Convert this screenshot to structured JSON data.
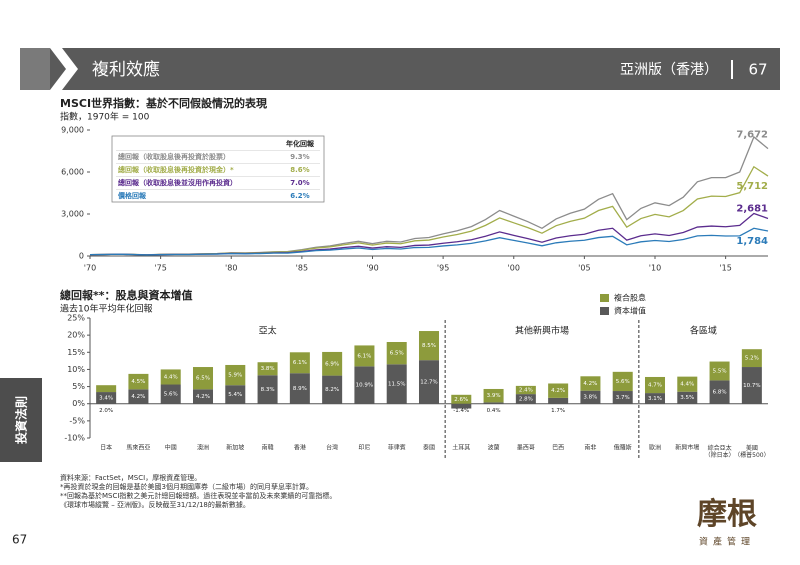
{
  "header": {
    "title": "複利效應",
    "edition": "亞洲版（香港）",
    "page": "67"
  },
  "side_tab": "投資法則",
  "page_number": "67",
  "footnotes": [
    "資料來源：FactSet，MSCI，摩根資產管理。",
    "*再投資於現金的回報是基於美國3個月期國庫券（二級市場）的同月孳息率計算。",
    "**回報為基於MSCI指數之美元計總回報總額。過往表現並非當前及未來業績的可靠指標。",
    "《環球市場縱覽 – 亞洲版》。反映截至31/12/18的最新數據。"
  ],
  "logo": {
    "name": "摩根",
    "tagline": "資產管理"
  },
  "chart_data": [
    {
      "type": "line",
      "title": "MSCI世界指數：基於不同假設情況的表現",
      "y_label": "指數，1970年 = 100",
      "legend_header": "年化回報",
      "x": [
        1970,
        1971,
        1972,
        1973,
        1974,
        1975,
        1976,
        1977,
        1978,
        1979,
        1980,
        1981,
        1982,
        1983,
        1984,
        1985,
        1986,
        1987,
        1988,
        1989,
        1990,
        1991,
        1992,
        1993,
        1994,
        1995,
        1996,
        1997,
        1998,
        1999,
        2000,
        2001,
        2002,
        2003,
        2004,
        2005,
        2006,
        2007,
        2008,
        2009,
        2010,
        2011,
        2012,
        2013,
        2014,
        2015,
        2016,
        2017,
        2018
      ],
      "xlim": [
        1970,
        2018
      ],
      "xticks": [
        {
          "value": 1970,
          "label": "'70"
        },
        {
          "value": 1975,
          "label": "'75"
        },
        {
          "value": 1980,
          "label": "'80"
        },
        {
          "value": 1985,
          "label": "'85"
        },
        {
          "value": 1990,
          "label": "'90"
        },
        {
          "value": 1995,
          "label": "'95"
        },
        {
          "value": 2000,
          "label": "'00"
        },
        {
          "value": 2005,
          "label": "'05"
        },
        {
          "value": 2010,
          "label": "'10"
        },
        {
          "value": 2015,
          "label": "'15"
        }
      ],
      "ylim": [
        0,
        9000
      ],
      "yticks": [
        0,
        {
          "value": 3000,
          "label": "3,000"
        },
        {
          "value": 6000,
          "label": "6,000"
        },
        {
          "value": 9000,
          "label": "9,000"
        }
      ],
      "grid": false,
      "series": [
        {
          "name": "總回報（收取股息後再投資於股票）",
          "annual_return": "9.3%",
          "color": "#8c8c8c",
          "values": [
            100,
            110,
            130,
            115,
            85,
            115,
            130,
            135,
            160,
            180,
            230,
            220,
            250,
            300,
            320,
            450,
            620,
            720,
            900,
            1050,
            880,
            1050,
            1000,
            1250,
            1320,
            1580,
            1800,
            2100,
            2600,
            3250,
            2850,
            2450,
            1980,
            2650,
            3050,
            3350,
            4050,
            4450,
            2600,
            3400,
            3800,
            3600,
            4200,
            5300,
            5600,
            5600,
            6000,
            8500,
            7672
          ],
          "value_labels": [
            null,
            null,
            null,
            null,
            null,
            null,
            null,
            null,
            null,
            null,
            null,
            null,
            null,
            null,
            null,
            null,
            null,
            null,
            null,
            null,
            null,
            null,
            null,
            null,
            null,
            null,
            null,
            null,
            null,
            null,
            null,
            null,
            null,
            null,
            null,
            null,
            null,
            null,
            null,
            null,
            null,
            null,
            null,
            null,
            null,
            null,
            null,
            null,
            "7,672"
          ]
        },
        {
          "name": "總回報（收取股息後再投資於現金）*",
          "annual_return": "8.6%",
          "color": "#a2ad4a",
          "values": [
            100,
            109,
            128,
            113,
            83,
            112,
            125,
            129,
            152,
            170,
            216,
            205,
            232,
            277,
            294,
            410,
            562,
            649,
            806,
            935,
            778,
            923,
            874,
            1085,
            1139,
            1356,
            1535,
            1781,
            2189,
            2720,
            2371,
            2026,
            1628,
            2165,
            2477,
            2703,
            3248,
            3547,
            2059,
            2676,
            2972,
            2797,
            3247,
            4070,
            4278,
            4250,
            4524,
            6375,
            5712
          ],
          "value_labels": [
            null,
            null,
            null,
            null,
            null,
            null,
            null,
            null,
            null,
            null,
            null,
            null,
            null,
            null,
            null,
            null,
            null,
            null,
            null,
            null,
            null,
            null,
            null,
            null,
            null,
            null,
            null,
            null,
            null,
            null,
            null,
            null,
            null,
            null,
            null,
            null,
            null,
            null,
            null,
            null,
            null,
            null,
            null,
            null,
            null,
            null,
            null,
            null,
            "5,712"
          ]
        },
        {
          "name": "總回報（收取股息後並沒用作再投資）",
          "annual_return": "7.0%",
          "color": "#5b2c8e",
          "values": [
            100,
            108,
            125,
            108,
            78,
            103,
            114,
            116,
            134,
            148,
            185,
            173,
            193,
            226,
            236,
            324,
            437,
            497,
            608,
            693,
            568,
            664,
            618,
            756,
            780,
            913,
            1019,
            1163,
            1409,
            1723,
            1476,
            1242,
            982,
            1288,
            1449,
            1554,
            1839,
            1980,
            1131,
            1448,
            1581,
            1465,
            1676,
            2067,
            2139,
            2089,
            2190,
            3035,
            2681
          ],
          "value_labels": [
            null,
            null,
            null,
            null,
            null,
            null,
            null,
            null,
            null,
            null,
            null,
            null,
            null,
            null,
            null,
            null,
            null,
            null,
            null,
            null,
            null,
            null,
            null,
            null,
            null,
            null,
            null,
            null,
            null,
            null,
            null,
            null,
            null,
            null,
            null,
            null,
            null,
            null,
            null,
            null,
            null,
            null,
            null,
            null,
            null,
            null,
            null,
            null,
            "2,681"
          ]
        },
        {
          "name": "價格回報",
          "annual_return": "6.2%",
          "color": "#2b7bb9",
          "values": [
            100,
            107,
            123,
            105,
            75,
            99,
            109,
            109,
            126,
            137,
            170,
            158,
            174,
            203,
            210,
            285,
            382,
            418,
            506,
            571,
            466,
            541,
            498,
            604,
            618,
            719,
            796,
            899,
            1079,
            1307,
            1114,
            929,
            729,
            943,
            1052,
            1122,
            1316,
            1406,
            796,
            1013,
            1109,
            1037,
            1176,
            1436,
            1473,
            1428,
            1440,
            1981,
            1784
          ],
          "value_labels": [
            null,
            null,
            null,
            null,
            null,
            null,
            null,
            null,
            null,
            null,
            null,
            null,
            null,
            null,
            null,
            null,
            null,
            null,
            null,
            null,
            null,
            null,
            null,
            null,
            null,
            null,
            null,
            null,
            null,
            null,
            null,
            null,
            null,
            null,
            null,
            null,
            null,
            null,
            null,
            null,
            null,
            null,
            null,
            null,
            null,
            null,
            null,
            null,
            "1,784"
          ]
        }
      ]
    },
    {
      "type": "bar",
      "title": "總回報**：股息與資本增值",
      "subtitle": "過去10年平均年化回報",
      "stacked": true,
      "groups": [
        {
          "name": "亞太",
          "categories": [
            "日本",
            "馬來西亞",
            "中國",
            "澳洲",
            "新加坡",
            "南韓",
            "香港",
            "台灣",
            "印尼",
            "菲律賓",
            "泰國"
          ]
        },
        {
          "name": "其他新興市場",
          "categories": [
            "土耳其",
            "波蘭",
            "墨西哥",
            "巴西",
            "南非",
            "俄羅斯"
          ]
        },
        {
          "name": "各區域",
          "categories": [
            "歐洲",
            "新興市場",
            "綜合亞太\n（除日本）",
            "美國\n（標普500）"
          ]
        }
      ],
      "ylim": [
        -10,
        25
      ],
      "yticks": [
        {
          "value": -10,
          "label": "-10%"
        },
        {
          "value": -5,
          "label": "-5%"
        },
        {
          "value": 0,
          "label": "0%"
        },
        {
          "value": 5,
          "label": "5%"
        },
        {
          "value": 10,
          "label": "10%"
        },
        {
          "value": 15,
          "label": "15%"
        },
        {
          "value": 20,
          "label": "20%"
        },
        {
          "value": 25,
          "label": "25%"
        }
      ],
      "series": [
        {
          "name": "資本增值",
          "color": "#595959",
          "values": [
            3.4,
            4.2,
            5.6,
            4.2,
            5.4,
            8.3,
            8.9,
            8.2,
            10.9,
            11.5,
            12.7,
            -1.4,
            0.4,
            2.8,
            1.7,
            3.8,
            3.7,
            3.1,
            3.5,
            6.8,
            10.7
          ],
          "value_labels": [
            "3.4%",
            "4.2%",
            "5.6%",
            "4.2%",
            "5.4%",
            "8.3%",
            "8.9%",
            "8.2%",
            "10.9%",
            "11.5%",
            "12.7%",
            "-1.4%",
            "0.4%",
            "2.8%",
            "1.7%",
            "3.8%",
            "3.7%",
            "3.1%",
            "3.5%",
            "6.8%",
            "10.7%"
          ]
        },
        {
          "name": "複合股息",
          "color": "#8d9b3c",
          "values": [
            2.0,
            4.5,
            4.4,
            6.5,
            5.9,
            3.8,
            6.1,
            6.9,
            6.1,
            6.5,
            8.5,
            2.6,
            3.9,
            2.4,
            4.2,
            4.2,
            5.6,
            4.7,
            4.4,
            5.5,
            5.2
          ],
          "value_labels": [
            "2.0%",
            "4.5%",
            "4.4%",
            "6.5%",
            "5.9%",
            "3.8%",
            "6.1%",
            "6.9%",
            "6.1%",
            "6.5%",
            "8.5%",
            "2.6%",
            "3.9%",
            "2.4%",
            "4.2%",
            "4.2%",
            "5.6%",
            "4.7%",
            "4.4%",
            "5.5%",
            "5.2%"
          ]
        }
      ]
    }
  ]
}
